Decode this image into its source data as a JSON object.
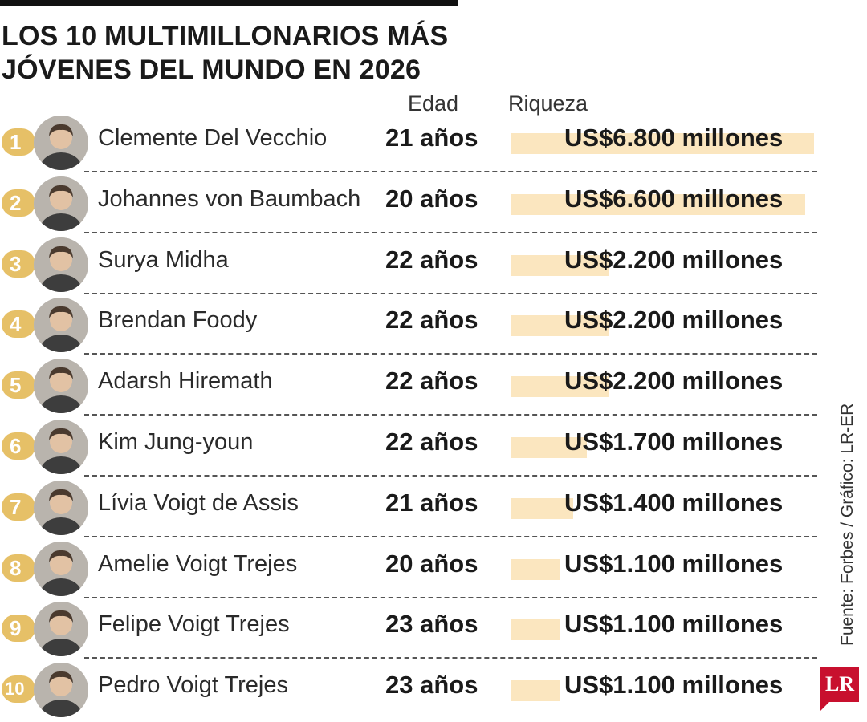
{
  "title_lines": [
    "LOS 10 MULTIMILLONARIOS MÁS",
    "JÓVENES DEL MUNDO EN 2026"
  ],
  "headers": {
    "age": "Edad",
    "wealth": "Riqueza"
  },
  "source": "Fuente: Forbes / Gráfico: LR-ER",
  "logo": "LR",
  "colors": {
    "badge": "#e6c067",
    "bar": "#fbe6bf",
    "logo": "#c8102e"
  },
  "chart_data": {
    "type": "table",
    "title": "LOS 10 MULTIMILLONARIOS MÁS JÓVENES DEL MUNDO EN 2026",
    "columns": [
      "Edad",
      "Riqueza"
    ],
    "rows": [
      {
        "rank": "1",
        "name": "Clemente Del Vecchio",
        "age_label": "21 años",
        "wealth_label": "US$6.800 millones",
        "wealth_musd": 6800
      },
      {
        "rank": "2",
        "name": "Johannes von Baumbach",
        "age_label": "20 años",
        "wealth_label": "US$6.600 millones",
        "wealth_musd": 6600
      },
      {
        "rank": "3",
        "name": "Surya Midha",
        "age_label": "22 años",
        "wealth_label": "US$2.200 millones",
        "wealth_musd": 2200
      },
      {
        "rank": "4",
        "name": "Brendan Foody",
        "age_label": "22 años",
        "wealth_label": "US$2.200 millones",
        "wealth_musd": 2200
      },
      {
        "rank": "5",
        "name": "Adarsh Hiremath",
        "age_label": "22 años",
        "wealth_label": "US$2.200 millones",
        "wealth_musd": 2200
      },
      {
        "rank": "6",
        "name": "Kim Jung-youn",
        "age_label": "22 años",
        "wealth_label": "US$1.700 millones",
        "wealth_musd": 1700
      },
      {
        "rank": "7",
        "name": "Lívia Voigt de Assis",
        "age_label": "21 años",
        "wealth_label": "US$1.400 millones",
        "wealth_musd": 1400
      },
      {
        "rank": "8",
        "name": "Amelie Voigt Trejes",
        "age_label": "20 años",
        "wealth_label": "US$1.100 millones",
        "wealth_musd": 1100
      },
      {
        "rank": "9",
        "name": "Felipe Voigt Trejes",
        "age_label": "23 años",
        "wealth_label": "US$1.100 millones",
        "wealth_musd": 1100
      },
      {
        "rank": "10",
        "name": "Pedro Voigt Trejes",
        "age_label": "23 años",
        "wealth_label": "US$1.100 millones",
        "wealth_musd": 1100
      }
    ]
  }
}
